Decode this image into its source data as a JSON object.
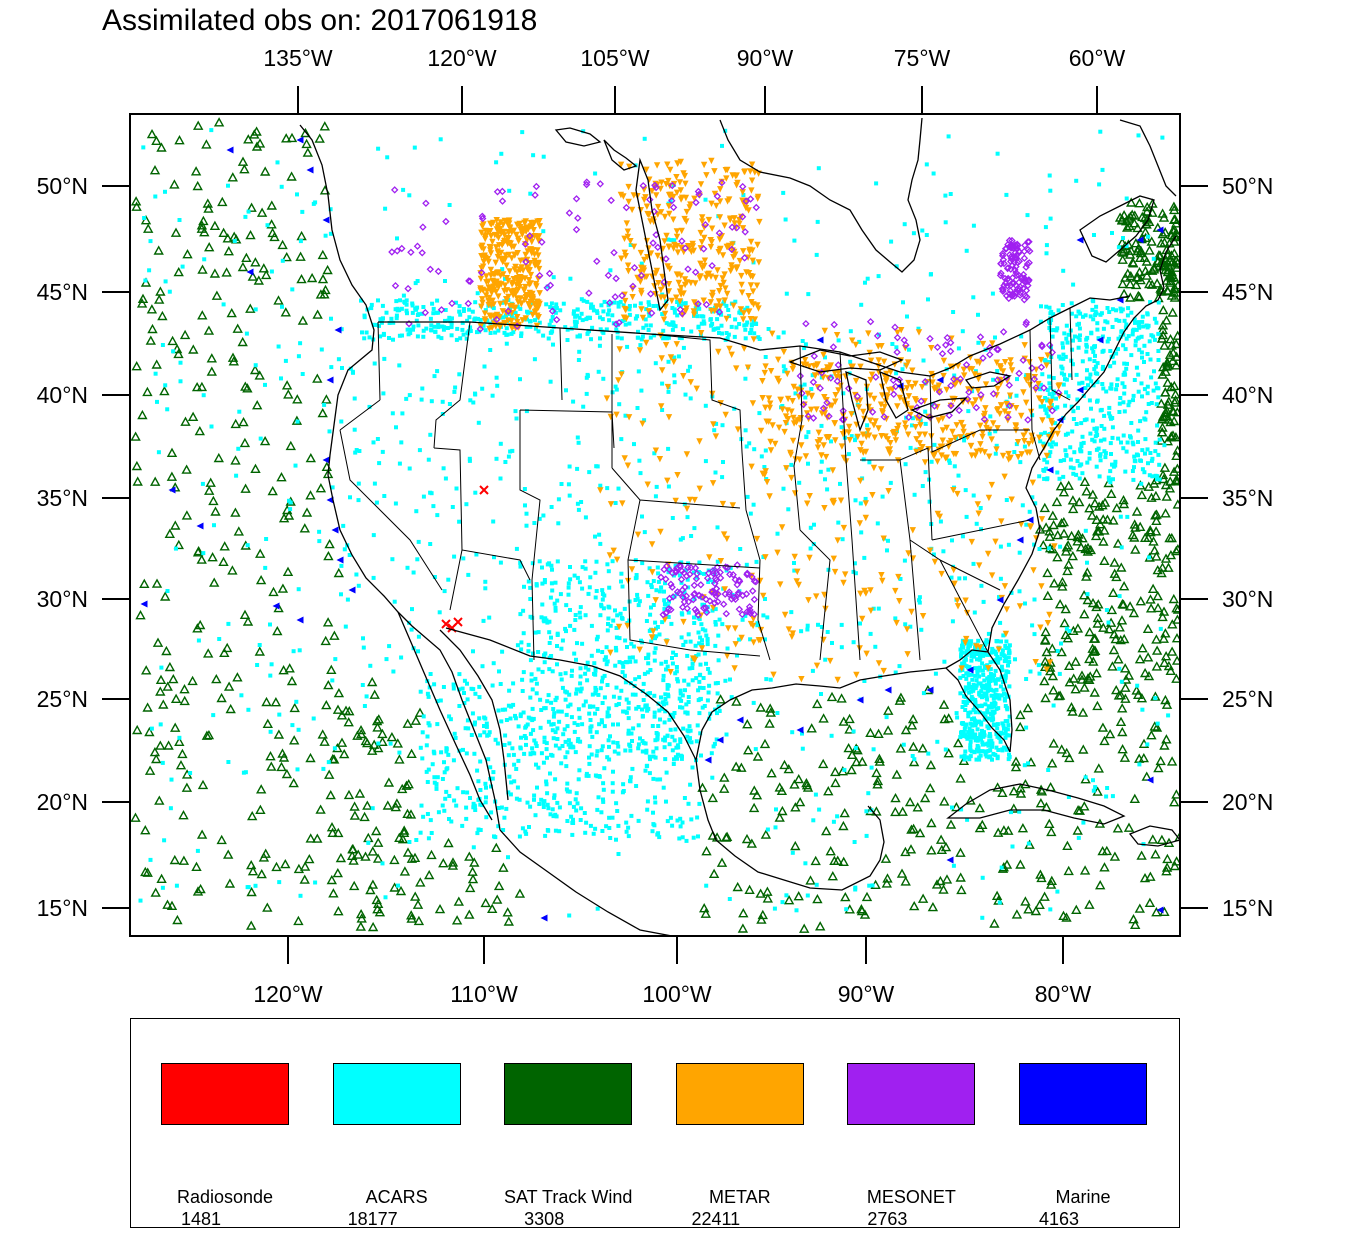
{
  "title": "Assimilated obs on: 2017061918",
  "map": {
    "top_lon_labels": [
      "135°W",
      "120°W",
      "105°W",
      "90°W",
      "75°W",
      "60°W"
    ],
    "bottom_lon_labels": [
      "120°W",
      "110°W",
      "100°W",
      "90°W",
      "80°W"
    ],
    "lat_labels": [
      "50°N",
      "45°N",
      "40°N",
      "35°N",
      "30°N",
      "25°N",
      "20°N",
      "15°N"
    ]
  },
  "legend": {
    "items": [
      {
        "name": "Radiosonde",
        "count": "1481",
        "color": "#ff0000"
      },
      {
        "name": "ACARS",
        "count": "18177",
        "color": "#00ffff"
      },
      {
        "name": "SAT Track Wind",
        "count": "3308",
        "color": "#006400"
      },
      {
        "name": "METAR",
        "count": "22411",
        "color": "#ffa500"
      },
      {
        "name": "MESONET",
        "count": "2763",
        "color": "#a020f0"
      },
      {
        "name": "Marine",
        "count": "4163",
        "color": "#0000ff"
      }
    ]
  }
}
